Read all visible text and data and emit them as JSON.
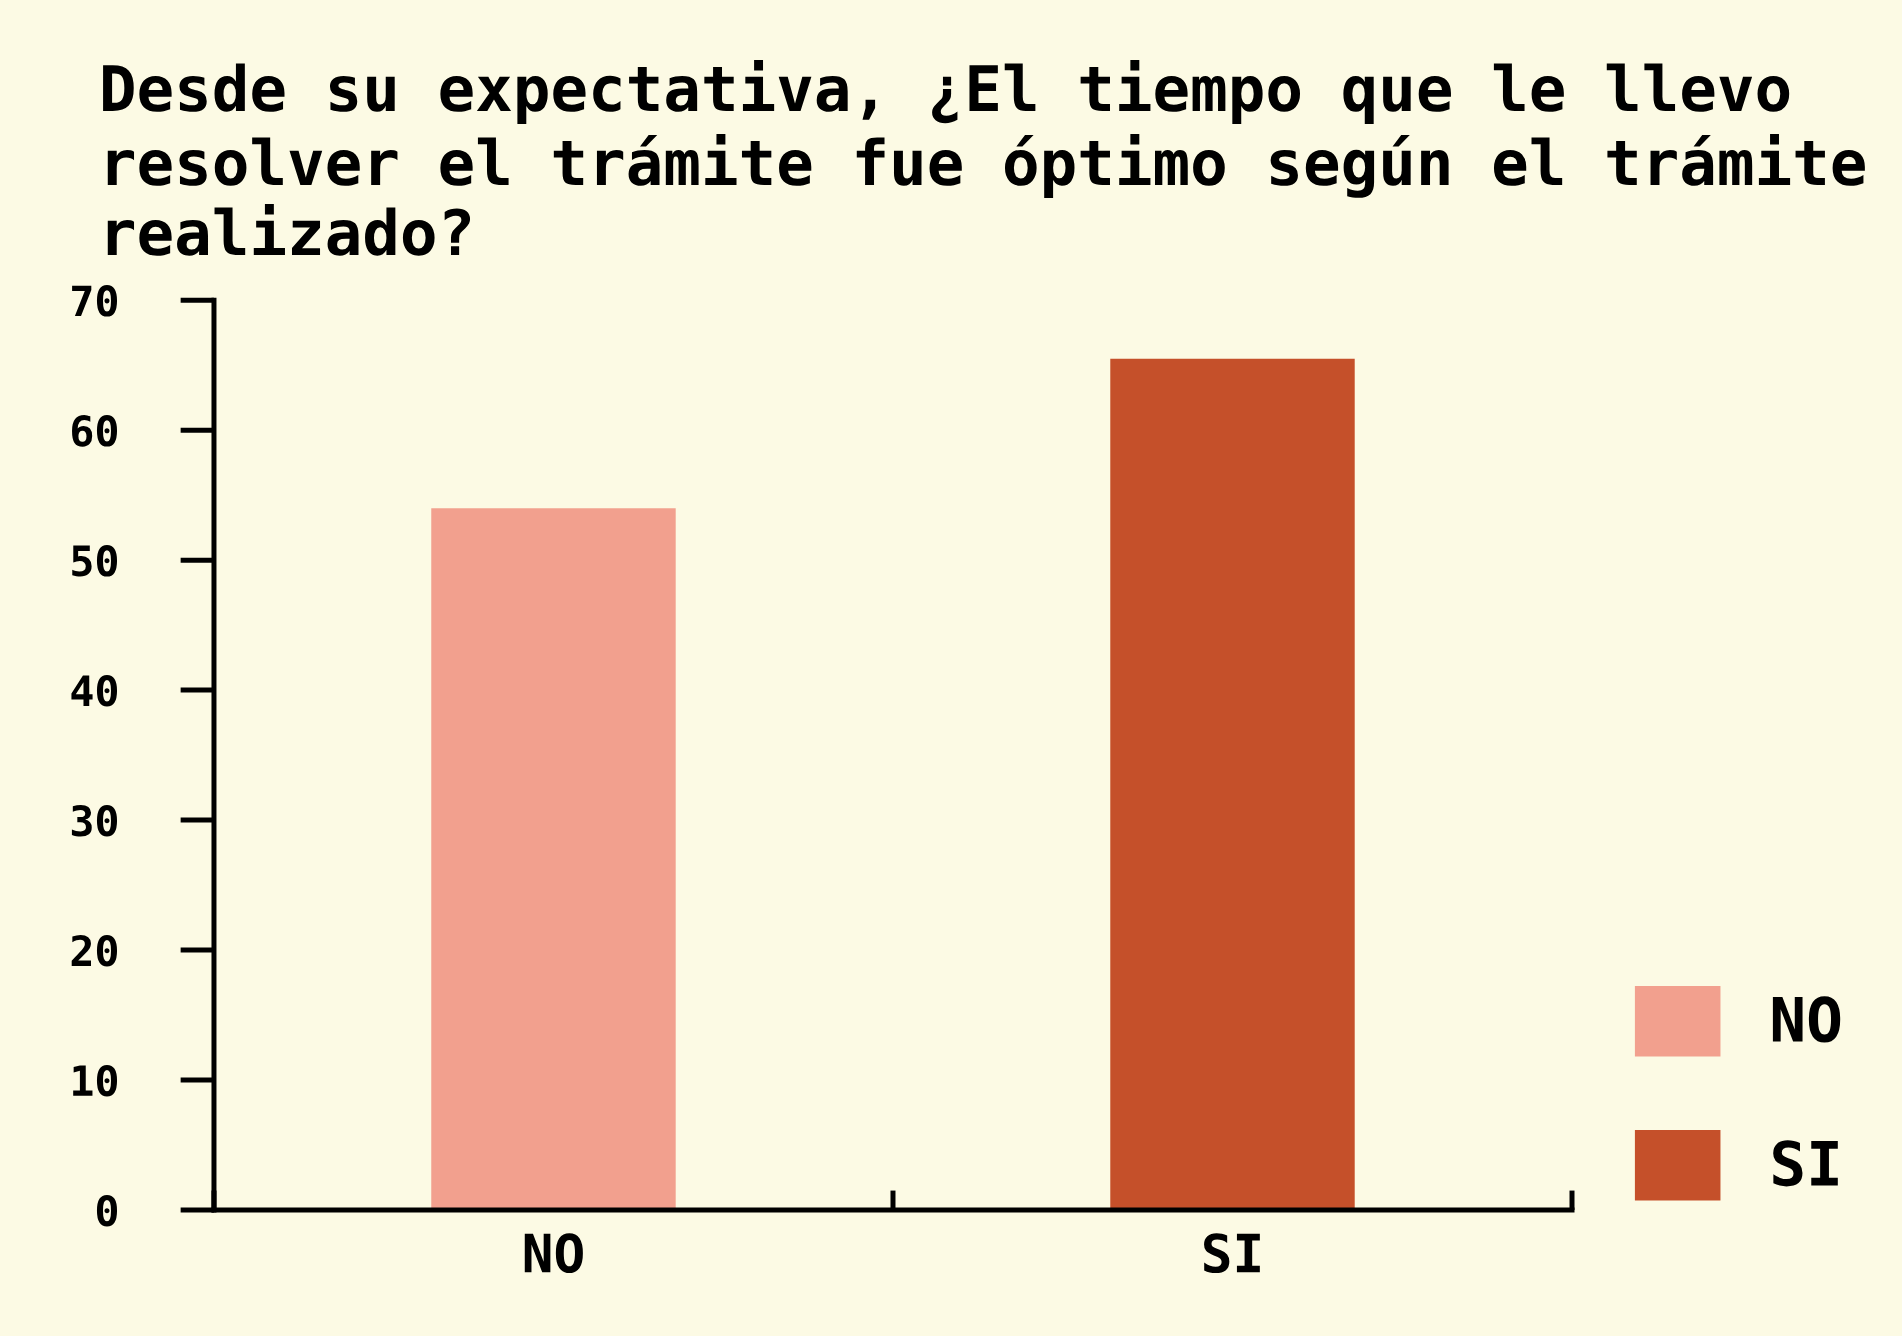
{
  "chart_data": {
    "type": "bar",
    "title": "Desde su expectativa, ¿El tiempo que le llevo resolver el trámite fue óptimo según el trámite realizado?",
    "categories": [
      "NO",
      "SI"
    ],
    "series": [
      {
        "name": "NO",
        "color": "#f2a08e",
        "values": [
          54,
          null
        ]
      },
      {
        "name": "SI",
        "color": "#c5502a",
        "values": [
          null,
          65.5
        ]
      }
    ],
    "ylim": [
      0,
      70
    ],
    "yticks": [
      0,
      10,
      20,
      30,
      40,
      50,
      60,
      70
    ],
    "grid": false,
    "legend": "bottom right"
  }
}
